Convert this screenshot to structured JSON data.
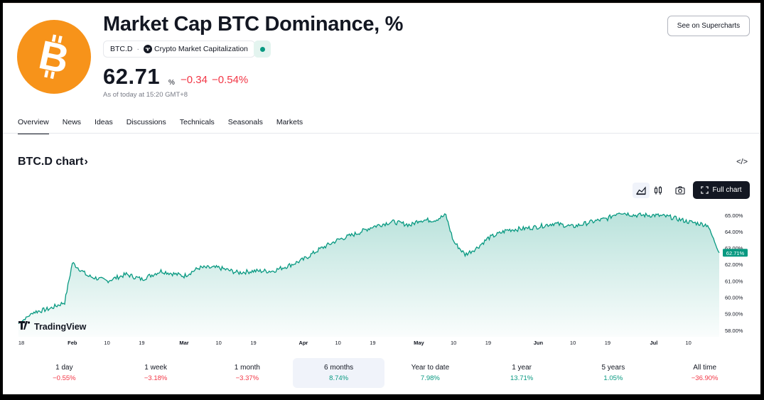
{
  "header": {
    "title": "Market Cap BTC Dominance, %",
    "ticker": "BTC.D",
    "separator": "·",
    "source": "Crypto Market Capitalization",
    "price": "62.71",
    "unit": "%",
    "change_abs": "−0.34",
    "change_pct": "−0.54%",
    "as_of": "As of today at 15:20 GMT+8",
    "supercharts_button": "See on Supercharts"
  },
  "tabs": [
    {
      "label": "Overview",
      "active": true
    },
    {
      "label": "News",
      "active": false
    },
    {
      "label": "Ideas",
      "active": false
    },
    {
      "label": "Discussions",
      "active": false
    },
    {
      "label": "Technicals",
      "active": false
    },
    {
      "label": "Seasonals",
      "active": false
    },
    {
      "label": "Markets",
      "active": false
    }
  ],
  "chart_section": {
    "title": "BTC.D chart",
    "chevron": "›",
    "embed_icon": "</>",
    "full_chart_button": "Full chart",
    "tv_logo_text": "TradingView"
  },
  "colors": {
    "brand_orange": "#f7931a",
    "line": "#089981",
    "negative": "#f23645",
    "positive": "#089981",
    "dark": "#131722"
  },
  "icons": [
    "bitcoin-logo-icon",
    "tradingview-mini-icon",
    "area-chart-icon",
    "candlestick-icon",
    "camera-icon",
    "fullscreen-icon",
    "embed-code-icon"
  ],
  "chart_data": {
    "type": "area",
    "x_tick_labels": [
      "18",
      "Feb",
      "10",
      "19",
      "Mar",
      "10",
      "19",
      "Apr",
      "10",
      "19",
      "May",
      "10",
      "19",
      "Jun",
      "10",
      "19",
      "Jul",
      "10"
    ],
    "y_tick_labels": [
      "65.00%",
      "64.00%",
      "63.00%",
      "62.00%",
      "61.00%",
      "60.00%",
      "59.00%",
      "58.00%"
    ],
    "ylim": [
      57.6,
      65.6
    ],
    "last_value_label": "62.71%",
    "x": [
      "Jan 18",
      "Jan 22",
      "Jan 26",
      "Jan 30",
      "Feb 1",
      "Feb 5",
      "Feb 10",
      "Feb 15",
      "Feb 19",
      "Feb 24",
      "Mar 1",
      "Mar 5",
      "Mar 10",
      "Mar 15",
      "Mar 19",
      "Mar 24",
      "Mar 29",
      "Apr 1",
      "Apr 5",
      "Apr 10",
      "Apr 15",
      "Apr 19",
      "Apr 24",
      "Apr 29",
      "May 1",
      "May 5",
      "May 8",
      "May 10",
      "May 13",
      "May 16",
      "May 19",
      "May 24",
      "May 29",
      "Jun 1",
      "Jun 5",
      "Jun 10",
      "Jun 15",
      "Jun 19",
      "Jun 22",
      "Jun 26",
      "Jul 1",
      "Jul 5",
      "Jul 10",
      "Jul 15",
      "Jul 18"
    ],
    "values": [
      58.4,
      59.1,
      59.3,
      59.7,
      62.1,
      61.3,
      61.0,
      61.4,
      61.1,
      61.6,
      61.3,
      61.8,
      61.8,
      61.5,
      61.6,
      61.6,
      62.0,
      62.3,
      62.9,
      63.5,
      63.9,
      64.3,
      64.6,
      64.4,
      64.7,
      64.7,
      65.0,
      63.4,
      62.6,
      63.0,
      63.6,
      64.1,
      64.2,
      64.3,
      64.5,
      64.3,
      64.6,
      64.8,
      65.2,
      65.0,
      65.0,
      64.9,
      64.6,
      64.4,
      62.71
    ]
  },
  "periods": [
    {
      "label": "1 day",
      "value": "−0.55%",
      "sign": "neg",
      "active": false
    },
    {
      "label": "1 week",
      "value": "−3.18%",
      "sign": "neg",
      "active": false
    },
    {
      "label": "1 month",
      "value": "−3.37%",
      "sign": "neg",
      "active": false
    },
    {
      "label": "6 months",
      "value": "8.74%",
      "sign": "pos",
      "active": true
    },
    {
      "label": "Year to date",
      "value": "7.98%",
      "sign": "pos",
      "active": false
    },
    {
      "label": "1 year",
      "value": "13.71%",
      "sign": "pos",
      "active": false
    },
    {
      "label": "5 years",
      "value": "1.05%",
      "sign": "pos",
      "active": false
    },
    {
      "label": "All time",
      "value": "−36.90%",
      "sign": "neg",
      "active": false
    }
  ]
}
